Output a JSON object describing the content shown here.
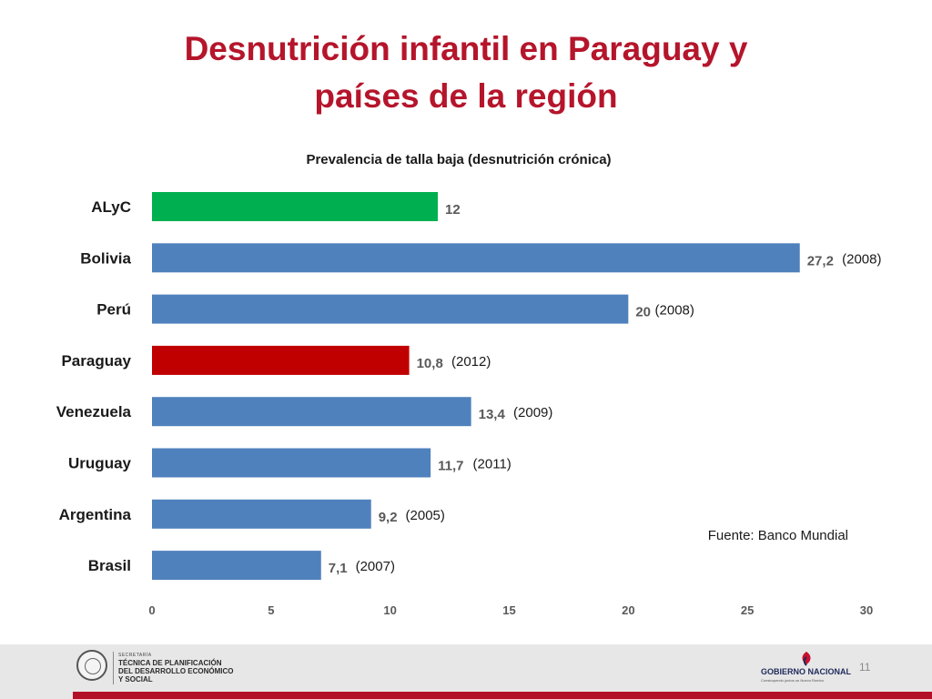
{
  "slide": {
    "title_line1": "Desnutrición infantil en Paraguay y",
    "title_line2": "países de la región",
    "page_number": "11"
  },
  "chart_data": {
    "type": "bar",
    "orientation": "horizontal",
    "title": "Prevalencia de talla baja (desnutrición crónica)",
    "categories": [
      "ALyC",
      "Bolivia",
      "Perú",
      "Paraguay",
      "Venezuela",
      "Uruguay",
      "Argentina",
      "Brasil"
    ],
    "values": [
      12,
      27.2,
      20,
      10.8,
      13.4,
      11.7,
      9.2,
      7.1
    ],
    "value_labels": [
      "12",
      "27,2",
      "20",
      "10,8",
      "13,4",
      "11,7",
      "9,2",
      "7,1"
    ],
    "year_labels": [
      "",
      "(2008)",
      "(2008)",
      "(2012)",
      "(2009)",
      "(2011)",
      "(2005)",
      "(2007)"
    ],
    "bar_colors": [
      "#00b050",
      "#4f81bd",
      "#4f81bd",
      "#c00000",
      "#4f81bd",
      "#4f81bd",
      "#4f81bd",
      "#4f81bd"
    ],
    "xlim": [
      0,
      30
    ],
    "xticks": [
      0,
      5,
      10,
      15,
      20,
      25,
      30
    ],
    "grid": false,
    "legend": "none",
    "source_note": "Fuente: Banco Mundial"
  },
  "footer": {
    "org_small": "SECRETARÍA",
    "org_line1": "TÉCNICA DE PLANIFICACIÓN",
    "org_line2": "DEL DESARROLLO ECONÓMICO",
    "org_line3": "Y SOCIAL",
    "gov_name": "GOBIERNO NACIONAL",
    "gov_tagline": "Construyendo juntos un Nuevo Rumbo",
    "icons": [
      "paraguay-seal-icon",
      "gobierno-nacional-logo-icon"
    ],
    "accent_color": "#b3112a"
  }
}
